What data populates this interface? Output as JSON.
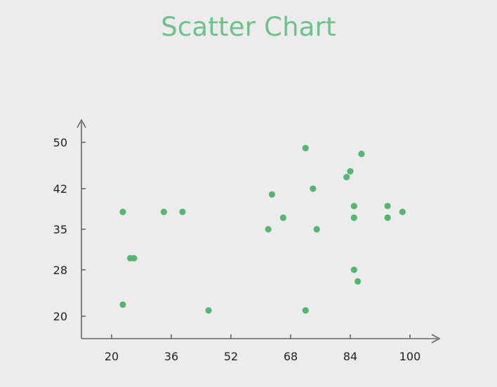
{
  "chart_data": {
    "type": "scatter",
    "title": "Scatter Chart",
    "xlabel": "",
    "ylabel": "",
    "x_ticks": [
      20,
      36,
      52,
      68,
      84,
      100
    ],
    "y_ticks": [
      20,
      28,
      35,
      42,
      50
    ],
    "xlim": [
      20,
      100
    ],
    "ylim": [
      20,
      50
    ],
    "grid": false,
    "legend": "none",
    "point_color": "#50b86f",
    "title_color": "#6cc28a",
    "axis_color": "#666666",
    "points": [
      {
        "x": 23,
        "y": 38
      },
      {
        "x": 23,
        "y": 22
      },
      {
        "x": 25,
        "y": 30
      },
      {
        "x": 26,
        "y": 30
      },
      {
        "x": 34,
        "y": 38
      },
      {
        "x": 39,
        "y": 38
      },
      {
        "x": 46,
        "y": 21
      },
      {
        "x": 62,
        "y": 35
      },
      {
        "x": 63,
        "y": 41
      },
      {
        "x": 66,
        "y": 37
      },
      {
        "x": 72,
        "y": 49
      },
      {
        "x": 72,
        "y": 21
      },
      {
        "x": 74,
        "y": 42
      },
      {
        "x": 75,
        "y": 35
      },
      {
        "x": 83,
        "y": 44
      },
      {
        "x": 84,
        "y": 45
      },
      {
        "x": 85,
        "y": 39
      },
      {
        "x": 85,
        "y": 37
      },
      {
        "x": 85,
        "y": 28
      },
      {
        "x": 86,
        "y": 26
      },
      {
        "x": 87,
        "y": 48
      },
      {
        "x": 94,
        "y": 39
      },
      {
        "x": 94,
        "y": 37
      },
      {
        "x": 98,
        "y": 38
      }
    ]
  }
}
